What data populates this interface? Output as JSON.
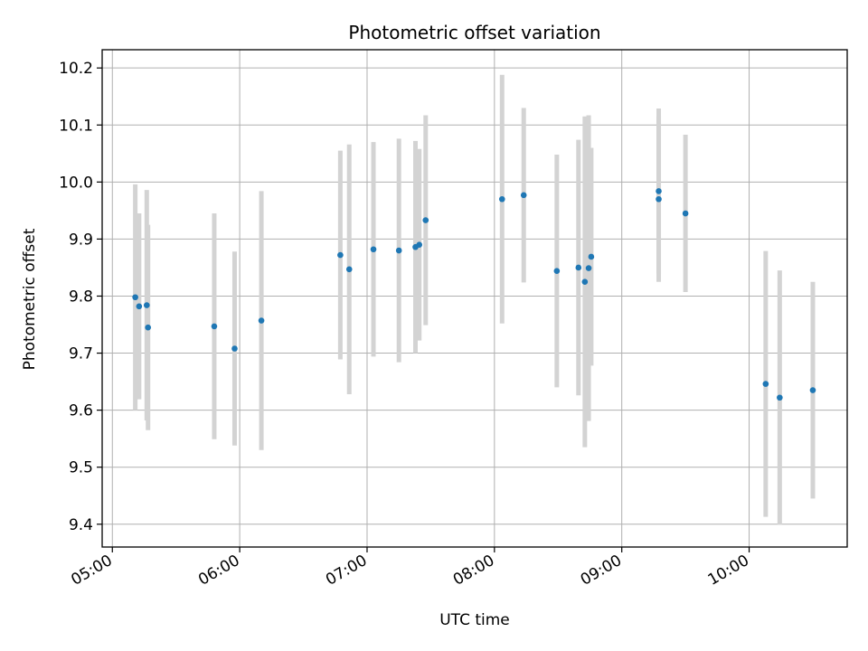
{
  "chart_data": {
    "type": "scatter",
    "title": "Photometric offset variation",
    "xlabel": "UTC time",
    "ylabel": "Photometric offset",
    "xlim": [
      4.92,
      10.77
    ],
    "ylim": [
      9.36,
      10.232
    ],
    "grid": true,
    "x_unit": "hours (UTC)",
    "xticks": [
      {
        "value": 5,
        "label": "05:00"
      },
      {
        "value": 6,
        "label": "06:00"
      },
      {
        "value": 7,
        "label": "07:00"
      },
      {
        "value": 8,
        "label": "08:00"
      },
      {
        "value": 9,
        "label": "09:00"
      },
      {
        "value": 10,
        "label": "10:00"
      }
    ],
    "yticks": [
      {
        "value": 9.4,
        "label": "9.4"
      },
      {
        "value": 9.5,
        "label": "9.5"
      },
      {
        "value": 9.6,
        "label": "9.6"
      },
      {
        "value": 9.7,
        "label": "9.7"
      },
      {
        "value": 9.8,
        "label": "9.8"
      },
      {
        "value": 9.9,
        "label": "9.9"
      },
      {
        "value": 10.0,
        "label": "10.0"
      },
      {
        "value": 10.1,
        "label": "10.1"
      },
      {
        "value": 10.2,
        "label": "10.2"
      }
    ],
    "point_color": "#1f77b4",
    "errorbar_color": "#d3d3d3",
    "points": [
      {
        "x": 5.18,
        "y": 9.798,
        "err": 0.198
      },
      {
        "x": 5.21,
        "y": 9.782,
        "err": 0.163
      },
      {
        "x": 5.27,
        "y": 9.784,
        "err": 0.202
      },
      {
        "x": 5.28,
        "y": 9.745,
        "err": 0.18
      },
      {
        "x": 5.8,
        "y": 9.747,
        "err": 0.198
      },
      {
        "x": 5.96,
        "y": 9.708,
        "err": 0.17
      },
      {
        "x": 6.17,
        "y": 9.757,
        "err": 0.227
      },
      {
        "x": 6.79,
        "y": 9.872,
        "err": 0.183
      },
      {
        "x": 6.86,
        "y": 9.847,
        "err": 0.219
      },
      {
        "x": 7.05,
        "y": 9.882,
        "err": 0.188
      },
      {
        "x": 7.25,
        "y": 9.88,
        "err": 0.196
      },
      {
        "x": 7.38,
        "y": 9.886,
        "err": 0.186
      },
      {
        "x": 7.41,
        "y": 9.89,
        "err": 0.168
      },
      {
        "x": 7.46,
        "y": 9.933,
        "err": 0.184
      },
      {
        "x": 8.06,
        "y": 9.97,
        "err": 0.218
      },
      {
        "x": 8.23,
        "y": 9.977,
        "err": 0.153
      },
      {
        "x": 8.49,
        "y": 9.844,
        "err": 0.204
      },
      {
        "x": 8.66,
        "y": 9.85,
        "err": 0.224
      },
      {
        "x": 8.71,
        "y": 9.825,
        "err": 0.29
      },
      {
        "x": 8.74,
        "y": 9.849,
        "err": 0.268
      },
      {
        "x": 8.76,
        "y": 9.869,
        "err": 0.191
      },
      {
        "x": 9.29,
        "y": 9.984,
        "err": 0.145
      },
      {
        "x": 9.29,
        "y": 9.97,
        "err": 0.145
      },
      {
        "x": 9.5,
        "y": 9.945,
        "err": 0.138
      },
      {
        "x": 10.13,
        "y": 9.646,
        "err": 0.233
      },
      {
        "x": 10.24,
        "y": 9.622,
        "err": 0.223
      },
      {
        "x": 10.5,
        "y": 9.635,
        "err": 0.19
      }
    ]
  }
}
